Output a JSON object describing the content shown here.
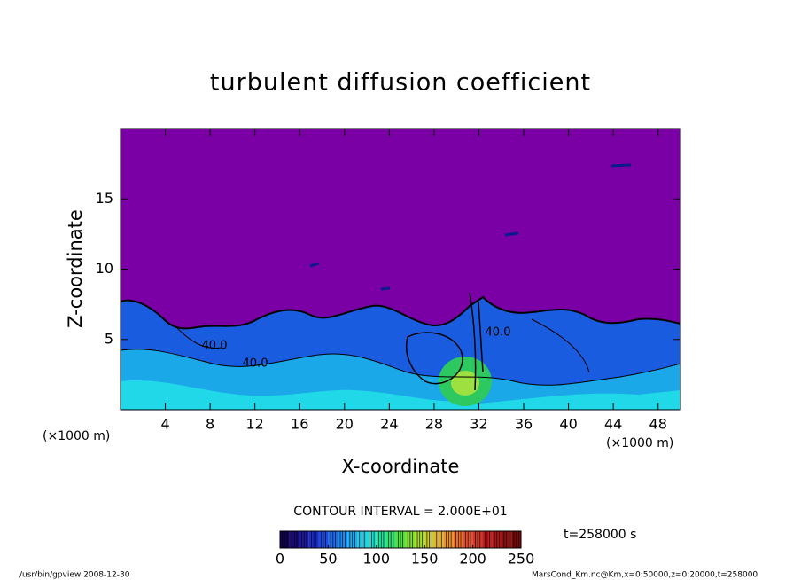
{
  "chart_data": {
    "type": "contour",
    "title": "turbulent diffusion coefficient",
    "x_label": "X-coordinate",
    "y_label": "Z-coordinate",
    "x_unit": "(×1000 m)",
    "y_unit": "(×1000 m)",
    "xlim": [
      0,
      50
    ],
    "xticks": [
      4,
      8,
      12,
      16,
      20,
      24,
      28,
      32,
      36,
      40,
      44,
      48
    ],
    "ylim": [
      0,
      20
    ],
    "yticks": [
      5,
      10,
      15
    ],
    "contour_labels": [
      "40.0",
      "40.0",
      "40.0"
    ],
    "contour_interval": "CONTOUR INTERVAL = 2.000E+01",
    "time": "t=258000 s",
    "colorbar": {
      "lim": [
        0,
        250
      ],
      "ticks": [
        0,
        50,
        100,
        150,
        200,
        250
      ],
      "colors": [
        "#120050",
        "#1a0a78",
        "#1e1aa0",
        "#1e2cc8",
        "#1e4ae0",
        "#1e6ae8",
        "#1e8cf0",
        "#20aaf0",
        "#20c8e8",
        "#20dcd0",
        "#20e0a0",
        "#30e070",
        "#50e040",
        "#80e030",
        "#a8d830",
        "#c8c830",
        "#e0b030",
        "#e89030",
        "#e87030",
        "#e05030",
        "#d03828",
        "#c02020",
        "#a81818",
        "#901010",
        "#780808"
      ]
    }
  },
  "footer": {
    "left": "/usr/bin/gpview   2008-12-30",
    "right": "MarsCond_Km.nc@Km,x=0:50000,z=0:20000,t=258000"
  }
}
